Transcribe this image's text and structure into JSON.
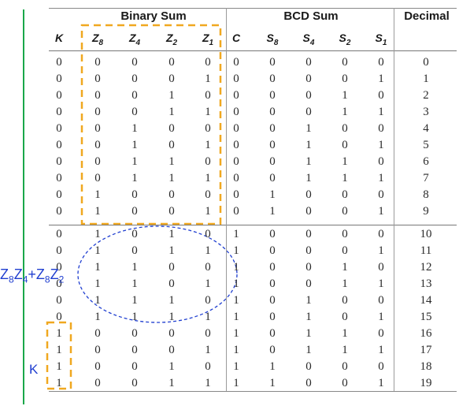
{
  "headers": {
    "binary_sum": "Binary Sum",
    "bcd_sum": "BCD Sum",
    "decimal": "Decimal"
  },
  "columns": [
    {
      "key": "K",
      "main": "K",
      "sub": ""
    },
    {
      "key": "Z8",
      "main": "Z",
      "sub": "8"
    },
    {
      "key": "Z4",
      "main": "Z",
      "sub": "4"
    },
    {
      "key": "Z2",
      "main": "Z",
      "sub": "2"
    },
    {
      "key": "Z1",
      "main": "Z",
      "sub": "1"
    },
    {
      "key": "C",
      "main": "C",
      "sub": ""
    },
    {
      "key": "S8",
      "main": "S",
      "sub": "8"
    },
    {
      "key": "S4",
      "main": "S",
      "sub": "4"
    },
    {
      "key": "S2",
      "main": "S",
      "sub": "2"
    },
    {
      "key": "S1",
      "main": "S",
      "sub": "1"
    }
  ],
  "rows": [
    [
      "0",
      "0",
      "0",
      "0",
      "0",
      "0",
      "0",
      "0",
      "0",
      "0",
      "0"
    ],
    [
      "0",
      "0",
      "0",
      "0",
      "1",
      "0",
      "0",
      "0",
      "0",
      "1",
      "1"
    ],
    [
      "0",
      "0",
      "0",
      "1",
      "0",
      "0",
      "0",
      "0",
      "1",
      "0",
      "2"
    ],
    [
      "0",
      "0",
      "0",
      "1",
      "1",
      "0",
      "0",
      "0",
      "1",
      "1",
      "3"
    ],
    [
      "0",
      "0",
      "1",
      "0",
      "0",
      "0",
      "0",
      "1",
      "0",
      "0",
      "4"
    ],
    [
      "0",
      "0",
      "1",
      "0",
      "1",
      "0",
      "0",
      "1",
      "0",
      "1",
      "5"
    ],
    [
      "0",
      "0",
      "1",
      "1",
      "0",
      "0",
      "0",
      "1",
      "1",
      "0",
      "6"
    ],
    [
      "0",
      "0",
      "1",
      "1",
      "1",
      "0",
      "0",
      "1",
      "1",
      "1",
      "7"
    ],
    [
      "0",
      "1",
      "0",
      "0",
      "0",
      "0",
      "1",
      "0",
      "0",
      "0",
      "8"
    ],
    [
      "0",
      "1",
      "0",
      "0",
      "1",
      "0",
      "1",
      "0",
      "0",
      "1",
      "9"
    ],
    [
      "0",
      "1",
      "0",
      "1",
      "0",
      "1",
      "0",
      "0",
      "0",
      "0",
      "10"
    ],
    [
      "0",
      "1",
      "0",
      "1",
      "1",
      "1",
      "0",
      "0",
      "0",
      "1",
      "11"
    ],
    [
      "0",
      "1",
      "1",
      "0",
      "0",
      "1",
      "0",
      "0",
      "1",
      "0",
      "12"
    ],
    [
      "0",
      "1",
      "1",
      "0",
      "1",
      "1",
      "0",
      "0",
      "1",
      "1",
      "13"
    ],
    [
      "0",
      "1",
      "1",
      "1",
      "0",
      "1",
      "0",
      "1",
      "0",
      "0",
      "14"
    ],
    [
      "0",
      "1",
      "1",
      "1",
      "1",
      "1",
      "0",
      "1",
      "0",
      "1",
      "15"
    ],
    [
      "1",
      "0",
      "0",
      "0",
      "0",
      "1",
      "0",
      "1",
      "1",
      "0",
      "16"
    ],
    [
      "1",
      "0",
      "0",
      "0",
      "1",
      "1",
      "0",
      "1",
      "1",
      "1",
      "17"
    ],
    [
      "1",
      "0",
      "0",
      "1",
      "0",
      "1",
      "1",
      "0",
      "0",
      "0",
      "18"
    ],
    [
      "1",
      "0",
      "0",
      "1",
      "1",
      "1",
      "1",
      "0",
      "0",
      "1",
      "19"
    ]
  ],
  "annotations": {
    "expression": "Z8Z4+Z8Z2",
    "k_label": "K",
    "colors": {
      "highlight_box": "#f0a820",
      "ellipse": "#1f3ed0",
      "margin_line": "#1aa84a",
      "annotation_text": "#1f3ed0"
    }
  }
}
